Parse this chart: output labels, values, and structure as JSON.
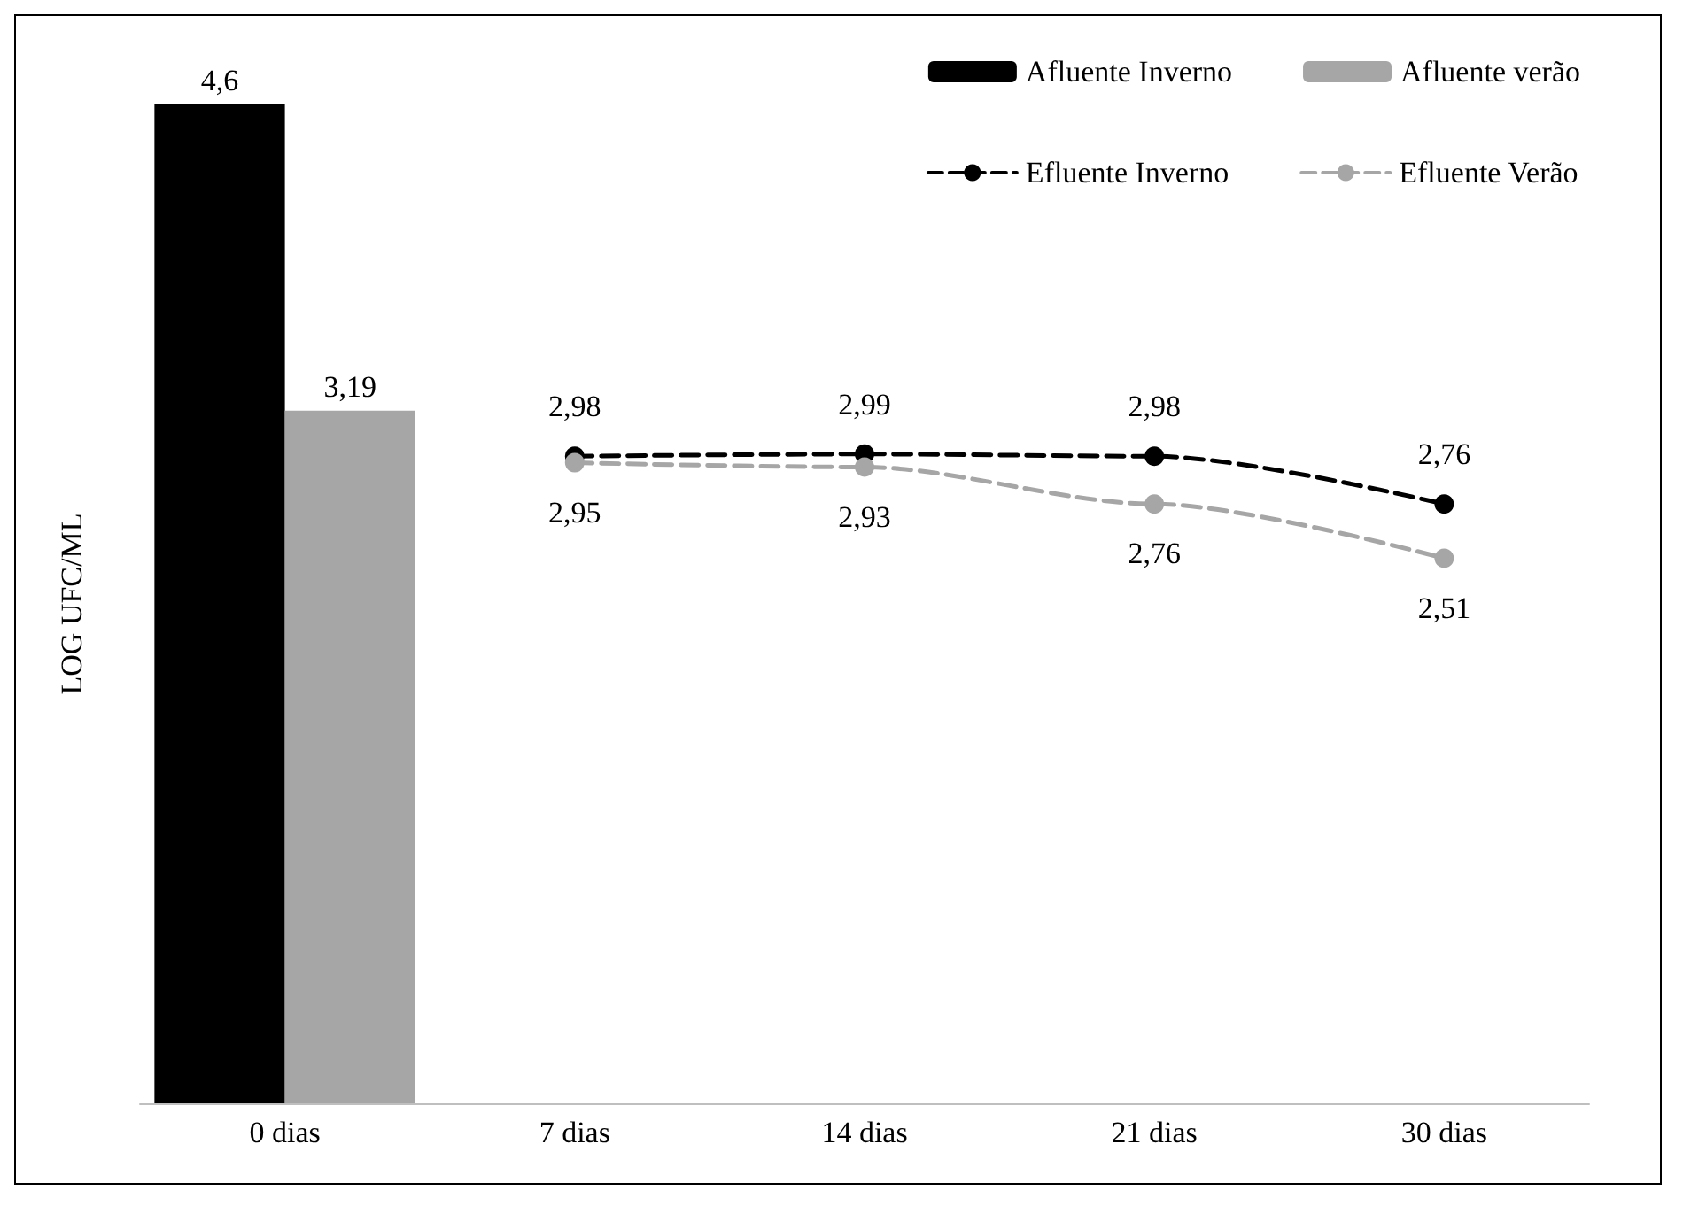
{
  "chart_data": {
    "type": "bar",
    "ylabel": "LOG UFC/ML",
    "categories": [
      "0 dias",
      "7 dias",
      "14 dias",
      "21 dias",
      "30 dias"
    ],
    "series": [
      {
        "name": "Afluente Inverno",
        "color": "#000000",
        "values": [
          4.6,
          null,
          null,
          null,
          null
        ],
        "value_labels": [
          "4,6",
          null,
          null,
          null,
          null
        ]
      },
      {
        "name": "Afluente verão",
        "color": "#a6a6a6",
        "values": [
          3.19,
          null,
          null,
          null,
          null
        ],
        "value_labels": [
          "3,19",
          null,
          null,
          null,
          null
        ]
      },
      {
        "name": "Efluente Inverno",
        "type": "line",
        "color": "#000000",
        "values": [
          null,
          2.98,
          2.99,
          2.98,
          2.76
        ],
        "value_labels": [
          null,
          "2,98",
          "2,99",
          "2,98",
          "2,76"
        ]
      },
      {
        "name": "Efluente Verão",
        "type": "line",
        "color": "#a6a6a6",
        "values": [
          null,
          2.95,
          2.93,
          2.76,
          2.51
        ],
        "value_labels": [
          null,
          "2,95",
          "2,93",
          "2,76",
          "2,51"
        ]
      }
    ],
    "legend": "top right",
    "marker": "circle",
    "line_style": "dashed"
  }
}
